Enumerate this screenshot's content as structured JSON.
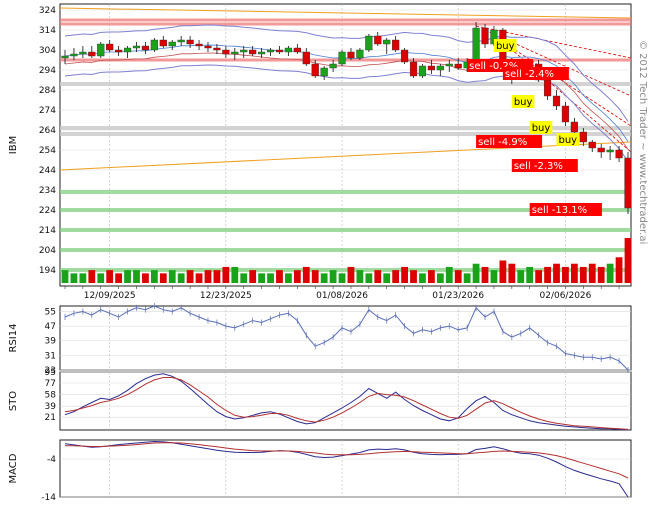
{
  "watermark": "© 2012 Tech Trader ~ www.techtrader.ai",
  "colors": {
    "up": "#1aa31a",
    "down": "#dd0000",
    "price_line": "#5a6fb5",
    "signal_line": "#b33030",
    "support": "#79cf79",
    "resistance": "#f08080",
    "buy_bg": "#ffff00",
    "sell_bg": "#ff0000"
  },
  "chart_data": [
    {
      "type": "candlestick",
      "ylabel": "IBM",
      "ylim": [
        186,
        327
      ],
      "yticks": [
        194,
        204,
        214,
        224,
        234,
        244,
        254,
        264,
        274,
        284,
        294,
        304,
        314,
        324
      ],
      "xticks": [
        "12/09/2025",
        "12/23/2025",
        "01/08/2026",
        "01/23/2026",
        "02/06/2026"
      ],
      "candles": [
        [
          300,
          304,
          297,
          301
        ],
        [
          301,
          305,
          299,
          302
        ],
        [
          302,
          306,
          300,
          303
        ],
        [
          303,
          306,
          300,
          301
        ],
        [
          301,
          308,
          300,
          307
        ],
        [
          307,
          309,
          303,
          304
        ],
        [
          304,
          306,
          301,
          303
        ],
        [
          303,
          306,
          300,
          305
        ],
        [
          305,
          308,
          303,
          306
        ],
        [
          306,
          308,
          302,
          304
        ],
        [
          304,
          310,
          303,
          309
        ],
        [
          309,
          311,
          305,
          306
        ],
        [
          306,
          309,
          304,
          308
        ],
        [
          308,
          311,
          306,
          309
        ],
        [
          309,
          311,
          305,
          307
        ],
        [
          307,
          309,
          304,
          306
        ],
        [
          306,
          308,
          303,
          305
        ],
        [
          305,
          307,
          302,
          304
        ],
        [
          304,
          306,
          300,
          302
        ],
        [
          302,
          305,
          299,
          303
        ],
        [
          303,
          306,
          300,
          304
        ],
        [
          304,
          306,
          301,
          302
        ],
        [
          302,
          305,
          300,
          303
        ],
        [
          303,
          305,
          301,
          304
        ],
        [
          304,
          306,
          302,
          303
        ],
        [
          303,
          306,
          301,
          305
        ],
        [
          305,
          307,
          302,
          303
        ],
        [
          303,
          305,
          296,
          297
        ],
        [
          297,
          299,
          290,
          291
        ],
        [
          291,
          296,
          289,
          295
        ],
        [
          295,
          299,
          293,
          297
        ],
        [
          297,
          304,
          296,
          303
        ],
        [
          303,
          305,
          299,
          300
        ],
        [
          300,
          305,
          299,
          304
        ],
        [
          304,
          312,
          303,
          311
        ],
        [
          311,
          313,
          306,
          307
        ],
        [
          307,
          310,
          302,
          309
        ],
        [
          309,
          311,
          303,
          304
        ],
        [
          304,
          305,
          297,
          298
        ],
        [
          298,
          300,
          290,
          291
        ],
        [
          291,
          297,
          290,
          296
        ],
        [
          296,
          299,
          292,
          294
        ],
        [
          294,
          297,
          291,
          296
        ],
        [
          296,
          299,
          293,
          297
        ],
        [
          297,
          300,
          294,
          295
        ],
        [
          295,
          300,
          293,
          298
        ],
        [
          298,
          318,
          297,
          315
        ],
        [
          315,
          317,
          305,
          307
        ],
        [
          307,
          316,
          306,
          314
        ],
        [
          314,
          315,
          295,
          297
        ],
        [
          297,
          300,
          287,
          290
        ],
        [
          290,
          296,
          289,
          295
        ],
        [
          295,
          299,
          293,
          297
        ],
        [
          297,
          299,
          288,
          289
        ],
        [
          289,
          291,
          279,
          281
        ],
        [
          281,
          284,
          274,
          276
        ],
        [
          276,
          278,
          266,
          268
        ],
        [
          268,
          270,
          261,
          263
        ],
        [
          263,
          265,
          256,
          258
        ],
        [
          258,
          259,
          253,
          255
        ],
        [
          255,
          257,
          250,
          253
        ],
        [
          253,
          256,
          249,
          254
        ],
        [
          254,
          256,
          248,
          250
        ],
        [
          250,
          253,
          222,
          225
        ]
      ],
      "volume": [
        4,
        3,
        3,
        4,
        3,
        4,
        3,
        4,
        4,
        3,
        4,
        3,
        4,
        3,
        4,
        3,
        4,
        4,
        5,
        5,
        3,
        4,
        3,
        3,
        4,
        3,
        4,
        5,
        4,
        3,
        4,
        3,
        5,
        4,
        3,
        4,
        3,
        4,
        5,
        4,
        3,
        4,
        3,
        5,
        4,
        3,
        6,
        5,
        4,
        7,
        6,
        4,
        5,
        4,
        5,
        6,
        5,
        6,
        5,
        6,
        5,
        6,
        8,
        14
      ],
      "signals": [
        {
          "label": "buy",
          "type": "buy",
          "i": 48,
          "price": 306
        },
        {
          "label": "sell -0.2%",
          "type": "sell",
          "i": 45,
          "price": 296
        },
        {
          "label": "sell -2.4%",
          "type": "sell",
          "i": 49,
          "price": 292
        },
        {
          "label": "buy",
          "type": "buy",
          "i": 50,
          "price": 278
        },
        {
          "label": "buy",
          "type": "buy",
          "i": 52,
          "price": 265
        },
        {
          "label": "buy",
          "type": "buy",
          "i": 55,
          "price": 259
        },
        {
          "label": "sell -4.9%",
          "type": "sell",
          "i": 46,
          "price": 258
        },
        {
          "label": "sell -2.3%",
          "type": "sell",
          "i": 50,
          "price": 246
        },
        {
          "label": "sell -13.1%",
          "type": "sell",
          "i": 52,
          "price": 224
        }
      ],
      "support_levels": [
        233,
        224,
        214,
        204,
        194
      ],
      "resistance_levels": [
        319,
        317,
        299
      ]
    },
    {
      "type": "line",
      "ylabel": "RSI14",
      "ylim": [
        23,
        58
      ],
      "yticks": [
        23,
        31,
        39,
        47,
        55
      ],
      "values": [
        52,
        54,
        55,
        53,
        56,
        54,
        52,
        55,
        57,
        56,
        58,
        56,
        55,
        57,
        54,
        52,
        50,
        49,
        47,
        46,
        48,
        50,
        49,
        51,
        53,
        54,
        50,
        42,
        36,
        38,
        41,
        46,
        44,
        48,
        56,
        52,
        50,
        53,
        47,
        43,
        45,
        44,
        46,
        47,
        45,
        46,
        57,
        52,
        55,
        44,
        41,
        43,
        46,
        42,
        38,
        36,
        32,
        31,
        30,
        30,
        29,
        30,
        28,
        23
      ]
    },
    {
      "type": "line",
      "ylabel": "STO",
      "ylim": [
        0,
        95
      ],
      "yticks": [
        21,
        39,
        58,
        77,
        95
      ],
      "series": [
        {
          "values": [
            25,
            30,
            38,
            45,
            52,
            50,
            56,
            65,
            76,
            84,
            90,
            92,
            88,
            80,
            68,
            55,
            42,
            30,
            22,
            18,
            20,
            24,
            28,
            30,
            26,
            20,
            14,
            10,
            12,
            20,
            28,
            36,
            45,
            55,
            68,
            60,
            52,
            62,
            50,
            40,
            32,
            25,
            18,
            15,
            20,
            35,
            48,
            55,
            45,
            32,
            25,
            20,
            15,
            12,
            10,
            8,
            6,
            5,
            4,
            3,
            2,
            2,
            1,
            0
          ]
        },
        {
          "values": [
            30,
            32,
            36,
            40,
            45,
            48,
            52,
            58,
            66,
            75,
            82,
            86,
            86,
            82,
            74,
            64,
            54,
            42,
            32,
            24,
            21,
            22,
            24,
            27,
            27,
            24,
            19,
            15,
            13,
            16,
            21,
            28,
            36,
            45,
            55,
            60,
            58,
            57,
            54,
            48,
            41,
            34,
            27,
            21,
            19,
            24,
            34,
            44,
            48,
            43,
            36,
            29,
            23,
            18,
            14,
            11,
            9,
            7,
            6,
            5,
            4,
            3,
            2,
            1
          ]
        }
      ]
    },
    {
      "type": "line",
      "ylabel": "MACD",
      "ylim": [
        -14,
        1
      ],
      "yticks": [
        -4,
        -14
      ],
      "series": [
        {
          "values": [
            0,
            -0.3,
            -0.6,
            -0.9,
            -0.8,
            -0.5,
            -0.2,
            0,
            0.2,
            0.4,
            0.6,
            0.5,
            0.3,
            -0.1,
            -0.5,
            -0.9,
            -1.3,
            -1.7,
            -2,
            -2.2,
            -2.3,
            -2.3,
            -2.2,
            -2,
            -1.8,
            -1.9,
            -2.2,
            -2.8,
            -3.4,
            -3.6,
            -3.5,
            -3.1,
            -2.7,
            -2.3,
            -1.6,
            -1.4,
            -1.5,
            -1.3,
            -1.6,
            -2.2,
            -2.6,
            -2.8,
            -2.9,
            -2.8,
            -2.8,
            -2.6,
            -1.5,
            -1.2,
            -0.8,
            -1.3,
            -2,
            -2.5,
            -2.6,
            -3,
            -3.8,
            -4.8,
            -6,
            -7,
            -7.8,
            -8.5,
            -9.2,
            -9.8,
            -10.5,
            -14
          ]
        },
        {
          "values": [
            -0.5,
            -0.5,
            -0.6,
            -0.7,
            -0.7,
            -0.6,
            -0.5,
            -0.4,
            -0.2,
            0,
            0.2,
            0.3,
            0.3,
            0.2,
            0,
            -0.2,
            -0.5,
            -0.8,
            -1.1,
            -1.4,
            -1.6,
            -1.8,
            -1.9,
            -1.9,
            -1.9,
            -1.9,
            -2,
            -2.2,
            -2.4,
            -2.7,
            -2.9,
            -2.9,
            -2.9,
            -2.8,
            -2.6,
            -2.4,
            -2.2,
            -2.1,
            -2,
            -2.1,
            -2.2,
            -2.3,
            -2.4,
            -2.5,
            -2.6,
            -2.6,
            -2.4,
            -2.2,
            -2,
            -1.9,
            -2,
            -2.1,
            -2.2,
            -2.4,
            -2.7,
            -3.1,
            -3.7,
            -4.4,
            -5.1,
            -5.8,
            -6.5,
            -7.2,
            -7.9,
            -9
          ]
        }
      ]
    }
  ]
}
